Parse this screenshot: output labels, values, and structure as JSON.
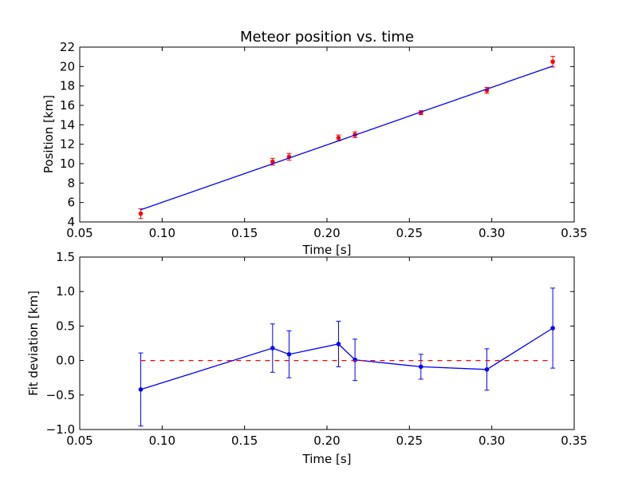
{
  "chart_data": [
    {
      "type": "line",
      "title": "Meteor position vs. time",
      "xlabel": "Time [s]",
      "ylabel": "Position [km]",
      "xlim": [
        0.05,
        0.35
      ],
      "ylim": [
        4,
        22
      ],
      "x_ticks": [
        "0.05",
        "0.10",
        "0.15",
        "0.20",
        "0.25",
        "0.30",
        "0.35"
      ],
      "y_ticks": [
        "4",
        "6",
        "8",
        "10",
        "12",
        "14",
        "16",
        "18",
        "20",
        "22"
      ],
      "grid": false,
      "series": [
        {
          "kind": "errorbar-points",
          "color": "#ff0000",
          "x": [
            0.087,
            0.167,
            0.177,
            0.207,
            0.217,
            0.257,
            0.297,
            0.337
          ],
          "y": [
            4.85,
            10.2,
            10.7,
            12.65,
            12.98,
            15.25,
            17.55,
            20.5
          ],
          "yerr": [
            0.5,
            0.35,
            0.35,
            0.3,
            0.3,
            0.2,
            0.3,
            0.55
          ]
        },
        {
          "kind": "fit-line",
          "color": "#0000ff",
          "x": [
            0.087,
            0.337
          ],
          "y": [
            5.25,
            20.05
          ]
        }
      ]
    },
    {
      "type": "line",
      "title": "",
      "xlabel": "Time [s]",
      "ylabel": "Fit deviation [km]",
      "xlim": [
        0.05,
        0.35
      ],
      "ylim": [
        -1.0,
        1.5
      ],
      "x_ticks": [
        "0.05",
        "0.10",
        "0.15",
        "0.20",
        "0.25",
        "0.30",
        "0.35"
      ],
      "y_ticks": [
        "−1.0",
        "−0.5",
        "0.0",
        "0.5",
        "1.0",
        "1.5"
      ],
      "grid": false,
      "series": [
        {
          "kind": "errorbar-line",
          "color": "#0000ff",
          "x": [
            0.087,
            0.167,
            0.177,
            0.207,
            0.217,
            0.257,
            0.297,
            0.337
          ],
          "y": [
            -0.42,
            0.18,
            0.09,
            0.24,
            0.01,
            -0.09,
            -0.13,
            0.47
          ],
          "yerr": [
            0.53,
            0.35,
            0.34,
            0.33,
            0.3,
            0.18,
            0.3,
            0.58
          ]
        },
        {
          "kind": "reference-line",
          "color": "#ff0000",
          "dash": true,
          "x": [
            0.087,
            0.337
          ],
          "y": [
            0.0,
            0.0
          ]
        }
      ]
    }
  ]
}
